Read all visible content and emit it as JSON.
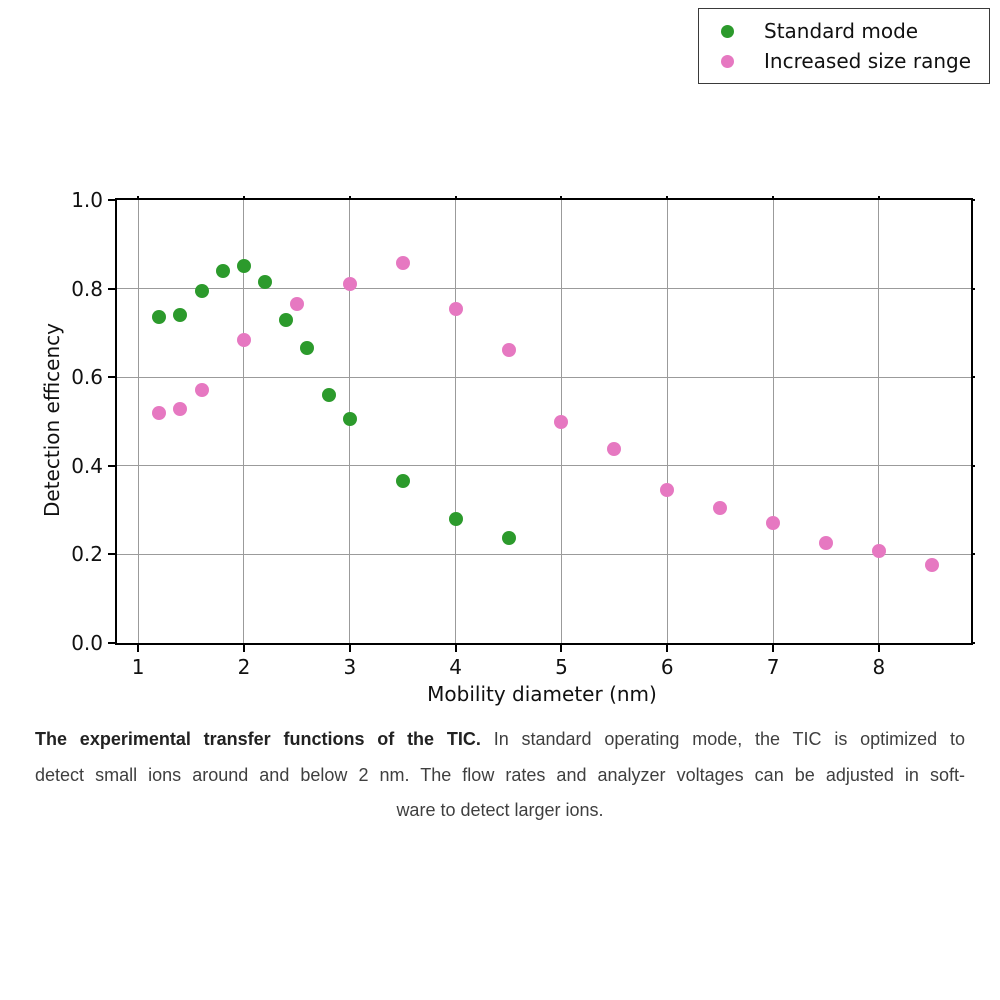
{
  "chart_data": {
    "type": "scatter",
    "title": "",
    "xlabel": "Mobility diameter (nm)",
    "ylabel": "Detection efficency",
    "xlim": [
      0.8,
      8.87
    ],
    "ylim": [
      0.0,
      1.0
    ],
    "grid": true,
    "legend_position": "upper right",
    "x_tick_values": [
      1,
      2,
      3,
      4,
      5,
      6,
      7,
      8
    ],
    "x_tick_labels": [
      "1",
      "2",
      "3",
      "4",
      "5",
      "6",
      "7",
      "8"
    ],
    "y_tick_values": [
      0.0,
      0.2,
      0.4,
      0.6,
      0.8,
      1.0
    ],
    "y_tick_labels": [
      "0.0",
      "0.2",
      "0.4",
      "0.6",
      "0.8",
      "1.0"
    ],
    "series": [
      {
        "name": "Standard mode",
        "color": "#2c9a2c",
        "points": [
          [
            1.2,
            0.735
          ],
          [
            1.4,
            0.74
          ],
          [
            1.6,
            0.795
          ],
          [
            1.8,
            0.84
          ],
          [
            2.0,
            0.85
          ],
          [
            2.2,
            0.815
          ],
          [
            2.4,
            0.73
          ],
          [
            2.6,
            0.665
          ],
          [
            2.8,
            0.56
          ],
          [
            3.0,
            0.505
          ],
          [
            3.5,
            0.365
          ],
          [
            4.0,
            0.28
          ],
          [
            4.5,
            0.238
          ]
        ]
      },
      {
        "name": "Increased size range",
        "color": "#e678c1",
        "points": [
          [
            1.2,
            0.52
          ],
          [
            1.4,
            0.528
          ],
          [
            1.6,
            0.57
          ],
          [
            2.0,
            0.685
          ],
          [
            2.5,
            0.765
          ],
          [
            3.0,
            0.81
          ],
          [
            3.5,
            0.857
          ],
          [
            4.0,
            0.755
          ],
          [
            4.5,
            0.662
          ],
          [
            5.0,
            0.5
          ],
          [
            5.5,
            0.437
          ],
          [
            6.0,
            0.345
          ],
          [
            6.5,
            0.305
          ],
          [
            7.0,
            0.27
          ],
          [
            7.5,
            0.225
          ],
          [
            8.0,
            0.207
          ],
          [
            8.5,
            0.175
          ]
        ]
      }
    ]
  },
  "caption": {
    "bold_lead": "The experimental transfer functions of the TIC.",
    "line1_rest": "In standard operating mode, the TIC is optimized to",
    "line2": "detect small ions around and below 2 nm. The flow rates and analyzer voltages can be adjusted in soft-",
    "line3": "ware to detect larger ions."
  }
}
